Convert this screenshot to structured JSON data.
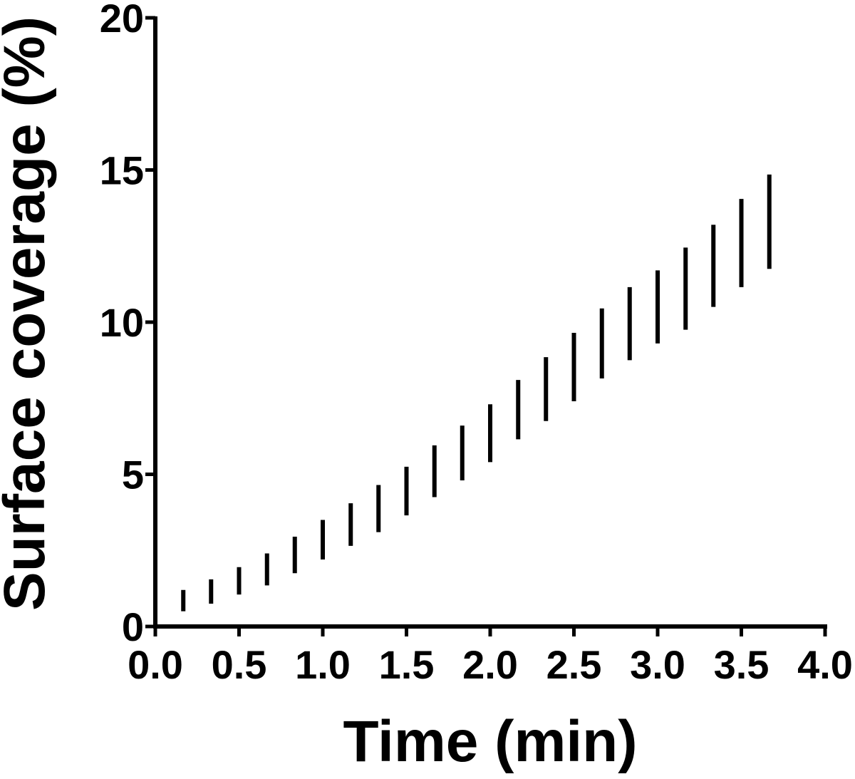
{
  "chart_data": {
    "type": "scatter",
    "title": "",
    "xlabel": "Time (min)",
    "ylabel": "Surface coverage (%)",
    "xlim": [
      0,
      4
    ],
    "ylim": [
      0,
      20
    ],
    "xticks": [
      "0.0",
      "0.5",
      "1.0",
      "1.5",
      "2.0",
      "2.5",
      "3.0",
      "3.5",
      "4.0"
    ],
    "yticks": [
      "0",
      "5",
      "10",
      "15",
      "20"
    ],
    "grid": false,
    "legend": "none",
    "color": "#000000",
    "series": [
      {
        "x": [
          0.167,
          0.333,
          0.5,
          0.667,
          0.833,
          1.0,
          1.167,
          1.333,
          1.5,
          1.667,
          1.833,
          2.0,
          2.167,
          2.333,
          2.5,
          2.667,
          2.833,
          3.0,
          3.167,
          3.333,
          3.5,
          3.667
        ],
        "low": [
          0.5,
          0.75,
          1.05,
          1.35,
          1.75,
          2.2,
          2.65,
          3.1,
          3.65,
          4.25,
          4.8,
          5.4,
          6.15,
          6.75,
          7.4,
          8.15,
          8.75,
          9.3,
          9.75,
          10.5,
          11.15,
          11.75
        ],
        "high": [
          1.2,
          1.55,
          1.95,
          2.4,
          2.95,
          3.5,
          4.05,
          4.65,
          5.25,
          5.95,
          6.6,
          7.3,
          8.1,
          8.85,
          9.65,
          10.45,
          11.15,
          11.7,
          12.45,
          13.2,
          14.05,
          14.85
        ]
      }
    ]
  }
}
